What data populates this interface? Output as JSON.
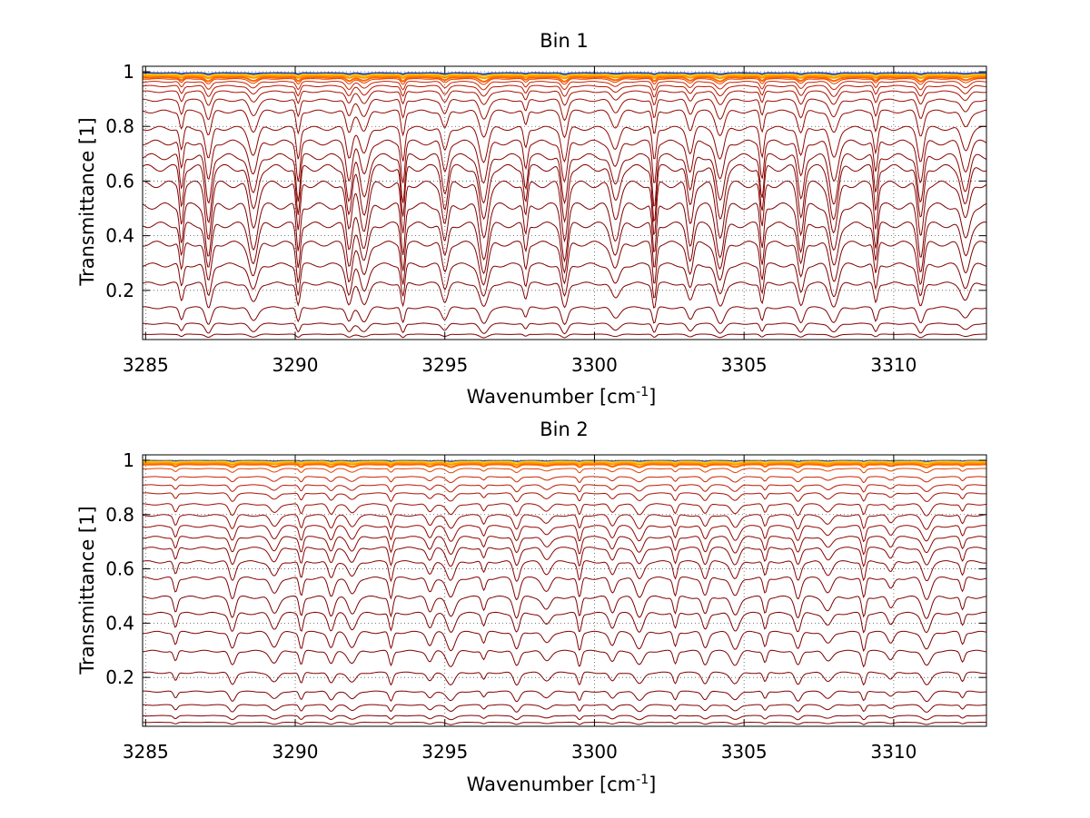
{
  "chart_data": [
    {
      "type": "line",
      "title": "Bin 1",
      "xlabel": "Wavenumber [cm",
      "xlabel_sup": "-1",
      "xlabel_end": "]",
      "ylabel": "Transmittance [1]",
      "xlim": [
        3284.9,
        3313.1
      ],
      "ylim": [
        0.02,
        1.02
      ],
      "xticks": [
        3285,
        3290,
        3295,
        3300,
        3305,
        3310
      ],
      "xtick_labels": [
        "3285",
        "3290",
        "3295",
        "3300",
        "3305",
        "3310"
      ],
      "yticks": [
        0.2,
        0.4,
        0.6,
        0.8,
        1
      ],
      "ytick_labels": [
        "0.2",
        "0.4",
        "0.6",
        "0.8",
        "1"
      ],
      "grid": true,
      "absorption_lines": [
        3286.2,
        3287.1,
        3288.6,
        3290.1,
        3291.8,
        3292.3,
        3293.6,
        3295.0,
        3296.3,
        3297.7,
        3299.0,
        3300.7,
        3302.0,
        3303.2,
        3304.2,
        3305.6,
        3306.9,
        3308.0,
        3309.4,
        3310.9,
        3312.4
      ],
      "series": [
        {
          "baseline": 0.995,
          "depth": 0.004,
          "color": "#1f3fbf"
        },
        {
          "baseline": 0.99,
          "depth": 0.006,
          "color": "#ffcc00"
        },
        {
          "baseline": 0.985,
          "depth": 0.008,
          "color": "#ff9900"
        },
        {
          "baseline": 0.98,
          "depth": 0.015,
          "color": "#ff6600"
        },
        {
          "baseline": 0.975,
          "depth": 0.02,
          "color": "#e04000"
        },
        {
          "baseline": 0.965,
          "depth": 0.03,
          "color": "#cc2200"
        },
        {
          "baseline": 0.95,
          "depth": 0.04,
          "color": "#b81800"
        },
        {
          "baseline": 0.93,
          "depth": 0.05,
          "color": "#a81000"
        },
        {
          "baseline": 0.9,
          "depth": 0.07,
          "color": "#9c0c00"
        },
        {
          "baseline": 0.86,
          "depth": 0.09,
          "color": "#940800"
        },
        {
          "baseline": 0.8,
          "depth": 0.12,
          "color": "#900600"
        },
        {
          "baseline": 0.75,
          "depth": 0.15,
          "color": "#8c0400"
        },
        {
          "baseline": 0.7,
          "depth": 0.18,
          "color": "#880400"
        },
        {
          "baseline": 0.66,
          "depth": 0.2,
          "color": "#860200"
        },
        {
          "baseline": 0.6,
          "depth": 0.2,
          "color": "#840000"
        },
        {
          "baseline": 0.52,
          "depth": 0.19,
          "color": "#800000"
        },
        {
          "baseline": 0.45,
          "depth": 0.17,
          "color": "#800000"
        },
        {
          "baseline": 0.38,
          "depth": 0.15,
          "color": "#800000"
        },
        {
          "baseline": 0.3,
          "depth": 0.12,
          "color": "#800000"
        },
        {
          "baseline": 0.23,
          "depth": 0.09,
          "color": "#800000"
        },
        {
          "baseline": 0.14,
          "depth": 0.06,
          "color": "#800000"
        },
        {
          "baseline": 0.08,
          "depth": 0.035,
          "color": "#800000"
        },
        {
          "baseline": 0.04,
          "depth": 0.012,
          "color": "#800000"
        }
      ]
    },
    {
      "type": "line",
      "title": "Bin 2",
      "xlabel": "Wavenumber [cm",
      "xlabel_sup": "-1",
      "xlabel_end": "]",
      "ylabel": "Transmittance [1]",
      "xlim": [
        3284.9,
        3313.1
      ],
      "ylim": [
        0.02,
        1.02
      ],
      "xticks": [
        3285,
        3290,
        3295,
        3300,
        3305,
        3310
      ],
      "xtick_labels": [
        "3285",
        "3290",
        "3295",
        "3300",
        "3305",
        "3310"
      ],
      "yticks": [
        0.2,
        0.4,
        0.6,
        0.8,
        1
      ],
      "ytick_labels": [
        "0.2",
        "0.4",
        "0.6",
        "0.8",
        "1"
      ],
      "grid": true,
      "absorption_lines": [
        3286.0,
        3287.9,
        3289.3,
        3290.2,
        3291.2,
        3291.9,
        3293.2,
        3294.5,
        3295.2,
        3296.3,
        3297.4,
        3298.4,
        3299.5,
        3300.6,
        3301.5,
        3302.7,
        3303.7,
        3304.7,
        3305.7,
        3306.8,
        3307.8,
        3309.0,
        3309.9,
        3311.1,
        3312.3
      ],
      "series": [
        {
          "baseline": 0.998,
          "depth": 0.003,
          "color": "#1f3fbf"
        },
        {
          "baseline": 0.995,
          "depth": 0.004,
          "color": "#ffcc00"
        },
        {
          "baseline": 0.99,
          "depth": 0.006,
          "color": "#ff9900"
        },
        {
          "baseline": 0.985,
          "depth": 0.01,
          "color": "#ff6600"
        },
        {
          "baseline": 0.97,
          "depth": 0.015,
          "color": "#e04000"
        },
        {
          "baseline": 0.94,
          "depth": 0.02,
          "color": "#cc2200"
        },
        {
          "baseline": 0.91,
          "depth": 0.025,
          "color": "#b81800"
        },
        {
          "baseline": 0.88,
          "depth": 0.03,
          "color": "#a81000"
        },
        {
          "baseline": 0.84,
          "depth": 0.04,
          "color": "#9c0c00"
        },
        {
          "baseline": 0.8,
          "depth": 0.05,
          "color": "#940800"
        },
        {
          "baseline": 0.76,
          "depth": 0.055,
          "color": "#900600"
        },
        {
          "baseline": 0.72,
          "depth": 0.06,
          "color": "#8c0400"
        },
        {
          "baseline": 0.68,
          "depth": 0.065,
          "color": "#880400"
        },
        {
          "baseline": 0.63,
          "depth": 0.07,
          "color": "#860200"
        },
        {
          "baseline": 0.57,
          "depth": 0.075,
          "color": "#840000"
        },
        {
          "baseline": 0.5,
          "depth": 0.075,
          "color": "#800000"
        },
        {
          "baseline": 0.44,
          "depth": 0.07,
          "color": "#800000"
        },
        {
          "baseline": 0.37,
          "depth": 0.065,
          "color": "#800000"
        },
        {
          "baseline": 0.3,
          "depth": 0.055,
          "color": "#800000"
        },
        {
          "baseline": 0.22,
          "depth": 0.045,
          "color": "#800000"
        },
        {
          "baseline": 0.15,
          "depth": 0.035,
          "color": "#800000"
        },
        {
          "baseline": 0.1,
          "depth": 0.025,
          "color": "#800000"
        },
        {
          "baseline": 0.06,
          "depth": 0.015,
          "color": "#800000"
        },
        {
          "baseline": 0.035,
          "depth": 0.008,
          "color": "#800000"
        }
      ]
    }
  ]
}
